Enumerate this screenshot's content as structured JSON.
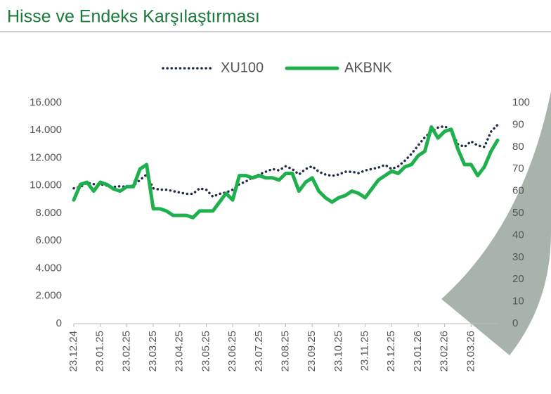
{
  "chart_data": {
    "type": "line",
    "title": "Hisse ve Endeks Karşılaştırması",
    "categories": [
      "23.12.24",
      null,
      null,
      null,
      "23.01.25",
      null,
      null,
      null,
      "23.02.25",
      null,
      null,
      null,
      "23.03.25",
      null,
      null,
      null,
      "23.04.25",
      null,
      null,
      null,
      "23.05.25",
      null,
      null,
      null,
      "23.06.25",
      null,
      null,
      null,
      "23.07.25",
      null,
      null,
      null,
      "23.08.25",
      null,
      null,
      null,
      "23.09.25",
      null,
      null,
      null,
      "23.10.25",
      null,
      null,
      null,
      "23.11.25",
      null,
      null,
      null,
      "23.12.25",
      null,
      null,
      null,
      "23.01.26",
      null,
      null,
      null,
      "23.02.26",
      null,
      null,
      null,
      "23.03.26",
      null,
      null,
      null,
      null
    ],
    "series": [
      {
        "name": "XU100",
        "color": "#1f2d4a",
        "values": [
          9800,
          9900,
          10200,
          10100,
          10100,
          10000,
          9900,
          9950,
          9900,
          10000,
          10400,
          10800,
          9800,
          9700,
          9700,
          9600,
          9500,
          9400,
          9400,
          9800,
          9700,
          9200,
          9400,
          9500,
          9700,
          10100,
          10300,
          10600,
          10800,
          11000,
          11200,
          11100,
          11400,
          11200,
          10800,
          11200,
          11400,
          11000,
          10800,
          10700,
          10800,
          11000,
          11000,
          10900,
          11100,
          11200,
          11300,
          11500,
          11200,
          11400,
          11800,
          12300,
          12900,
          13500,
          13900,
          14200,
          14300,
          14000,
          13000,
          12800,
          13200,
          12900,
          12800,
          13900,
          14400
        ]
      },
      {
        "name": "AKBNK",
        "color": "#1fb04e",
        "axis": "y2",
        "values": [
          56,
          63,
          64,
          60,
          64,
          63,
          61,
          60,
          62,
          62,
          70,
          72,
          52,
          52,
          51,
          49,
          49,
          49,
          48,
          51,
          51,
          51,
          55,
          59,
          56,
          67,
          67,
          66,
          67,
          66,
          66,
          65,
          68,
          68,
          60,
          64,
          66,
          60,
          57,
          55,
          57,
          58,
          60,
          59,
          57,
          61,
          65,
          67,
          69,
          68,
          71,
          72,
          76,
          78,
          89,
          84,
          87,
          88,
          79,
          72,
          72,
          67,
          71,
          78,
          83
        ]
      }
    ],
    "ylim": [
      0,
      16000
    ],
    "yticks": [
      0,
      {
        "value": 2000,
        "label": "2.000"
      },
      {
        "value": 4000,
        "label": "4.000"
      },
      {
        "value": 6000,
        "label": "6.000"
      },
      {
        "value": 8000,
        "label": "8.000"
      },
      {
        "value": 10000,
        "label": "10.000"
      },
      {
        "value": 12000,
        "label": "12.000"
      },
      {
        "value": 14000,
        "label": "14.000"
      },
      {
        "value": 16000,
        "label": "16.000"
      }
    ],
    "y2lim": [
      0,
      100
    ],
    "y2ticks": [
      0,
      10,
      20,
      30,
      40,
      50,
      60,
      70,
      80,
      90,
      100
    ],
    "legend": "top"
  }
}
